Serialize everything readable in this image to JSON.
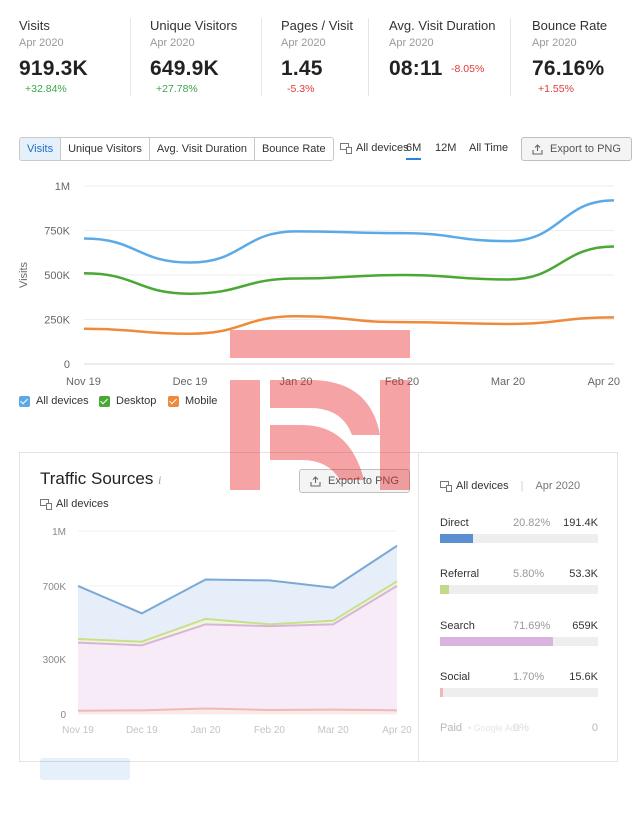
{
  "kpis": [
    {
      "label": "Visits",
      "period": "Apr 2020",
      "value": "919.3K",
      "delta": "+32.84%",
      "delta_dir": "up"
    },
    {
      "label": "Unique Visitors",
      "period": "Apr 2020",
      "value": "649.9K",
      "delta": "+27.78%",
      "delta_dir": "up"
    },
    {
      "label": "Pages / Visit",
      "period": "Apr 2020",
      "value": "1.45",
      "delta": "-5.3%",
      "delta_dir": "down"
    },
    {
      "label": "Avg. Visit Duration",
      "period": "Apr 2020",
      "value": "08:11",
      "delta": "-8.05%",
      "delta_dir": "down"
    },
    {
      "label": "Bounce Rate",
      "period": "Apr 2020",
      "value": "76.16%",
      "delta": "+1.55%",
      "delta_dir": "down"
    }
  ],
  "toolbar": {
    "metric_tabs": [
      "Visits",
      "Unique Visitors",
      "Avg. Visit Duration",
      "Bounce Rate"
    ],
    "active_metric": "Visits",
    "devices_label": "All devices",
    "periods": [
      "6M",
      "12M",
      "All Time"
    ],
    "active_period": "6M",
    "export_label": "Export to PNG"
  },
  "legend": [
    {
      "label": "All devices",
      "color": "#5aaae8"
    },
    {
      "label": "Desktop",
      "color": "#4aa835"
    },
    {
      "label": "Mobile",
      "color": "#ef8a3c"
    }
  ],
  "chart_data": [
    {
      "type": "line",
      "title": "",
      "ylabel": "Visits",
      "xlabel": "",
      "categories": [
        "Nov 19",
        "Dec 19",
        "Jan 20",
        "Feb 20",
        "Mar 20",
        "Apr 20"
      ],
      "ylim": [
        0,
        1000000
      ],
      "yticks": [
        "0",
        "250K",
        "500K",
        "750K",
        "1M"
      ],
      "ytick_values": [
        0,
        250000,
        500000,
        750000,
        1000000
      ],
      "grid": true,
      "legend_position": "bottom-left",
      "series": [
        {
          "name": "All devices",
          "color": "#5aaae8",
          "values": [
            705000,
            570000,
            745000,
            735000,
            690000,
            919300
          ]
        },
        {
          "name": "Desktop",
          "color": "#4aa835",
          "values": [
            510000,
            395000,
            480000,
            500000,
            475000,
            660000
          ]
        },
        {
          "name": "Mobile",
          "color": "#ef8a3c",
          "values": [
            198000,
            170000,
            268000,
            235000,
            225000,
            262000
          ]
        }
      ]
    },
    {
      "type": "area",
      "title": "Traffic Sources",
      "ylabel": "",
      "xlabel": "",
      "categories": [
        "Nov 19",
        "Dec 19",
        "Jan 20",
        "Feb 20",
        "Mar 20",
        "Apr 20"
      ],
      "ylim": [
        0,
        1000000
      ],
      "yticks": [
        "0",
        "300K",
        "700K",
        "1M"
      ],
      "ytick_values": [
        0,
        300000,
        700000,
        1000000
      ],
      "grid": true,
      "series": [
        {
          "color": "#7aa9d6",
          "fill": "#e6eef9",
          "values": [
            700000,
            550000,
            735000,
            730000,
            690000,
            919300
          ]
        },
        {
          "color": "#c8e08a",
          "fill": "#eef6dd",
          "values": [
            410000,
            395000,
            520000,
            490000,
            510000,
            725000
          ]
        },
        {
          "color": "#d9b4d9",
          "fill": "#f6ebf6",
          "values": [
            390000,
            375000,
            490000,
            480000,
            490000,
            700000
          ]
        },
        {
          "color": "#f2b8b8",
          "fill": "#fbeaea",
          "values": [
            18000,
            20000,
            30000,
            22000,
            24000,
            20000
          ]
        }
      ]
    }
  ],
  "traffic_sources": {
    "title": "Traffic Sources",
    "info_symbol": "i",
    "export_label": "Export to PNG",
    "devices_label": "All devices",
    "side_devices_label": "All devices",
    "side_period": "Apr 2020",
    "rows": [
      {
        "name": "Direct",
        "pct": "20.82%",
        "count": "191.4K",
        "fraction": 0.2082,
        "color": "#5a8fd0"
      },
      {
        "name": "Referral",
        "pct": "5.80%",
        "count": "53.3K",
        "fraction": 0.058,
        "color": "#c2d98a"
      },
      {
        "name": "Search",
        "pct": "71.69%",
        "count": "659K",
        "fraction": 0.7169,
        "color": "#d9b4de"
      },
      {
        "name": "Social",
        "pct": "1.70%",
        "count": "15.6K",
        "fraction": 0.017,
        "color": "#f2b8b8"
      },
      {
        "name": "Paid",
        "sub": "• Google Ads",
        "pct": "0%",
        "count": "0",
        "fraction": 0,
        "color": "#cccccc"
      }
    ]
  },
  "icons": {
    "devices": "devices-icon",
    "export": "export-icon",
    "watermark": "watermark-logo"
  }
}
